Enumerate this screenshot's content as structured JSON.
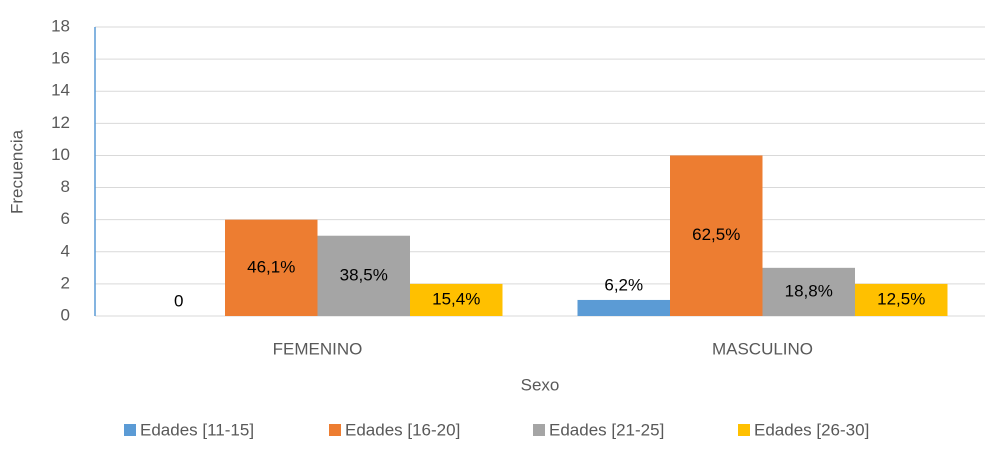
{
  "chart_data": {
    "type": "bar",
    "categories": [
      "FEMENINO",
      "MASCULINO"
    ],
    "series": [
      {
        "name": "Edades [11-15]",
        "color": "#5b9bd5",
        "values": [
          0,
          1
        ],
        "labels": [
          "0",
          "6,2%"
        ]
      },
      {
        "name": "Edades [16-20]",
        "color": "#ed7d31",
        "values": [
          6,
          10
        ],
        "labels": [
          "46,1%",
          "62,5%"
        ]
      },
      {
        "name": "Edades [21-25]",
        "color": "#a5a5a5",
        "values": [
          5,
          3
        ],
        "labels": [
          "38,5%",
          "18,8%"
        ]
      },
      {
        "name": "Edades [26-30]",
        "color": "#ffc000",
        "values": [
          2,
          2
        ],
        "labels": [
          "15,4%",
          "12,5%"
        ]
      }
    ],
    "xlabel": "Sexo",
    "ylabel": "Frecuencia",
    "ylim": [
      0,
      18
    ],
    "yticks": [
      0,
      2,
      4,
      6,
      8,
      10,
      12,
      14,
      16,
      18
    ],
    "grid": true,
    "legend": "bottom"
  }
}
